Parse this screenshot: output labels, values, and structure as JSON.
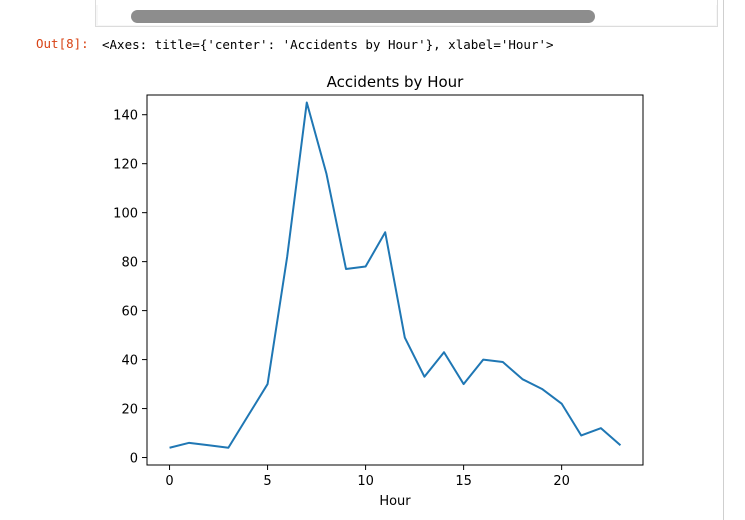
{
  "cell": {
    "prompt": "Out[8]:",
    "output_text": "<Axes: title={'center': 'Accidents by Hour'}, xlabel='Hour'>"
  },
  "colors": {
    "prompt": "#d84315",
    "line": "#1f77b4",
    "scroll_thumb": "#8d8d8d"
  },
  "chart_data": {
    "type": "line",
    "title": "Accidents by Hour",
    "xlabel": "Hour",
    "ylabel": "",
    "xlim": [
      -1.15,
      24.15
    ],
    "ylim": [
      -3.05,
      148.05
    ],
    "xticks": [
      0,
      5,
      10,
      15,
      20
    ],
    "yticks": [
      0,
      20,
      40,
      60,
      80,
      100,
      120,
      140
    ],
    "grid": false,
    "legend": "none",
    "series": [
      {
        "x": [
          0,
          1,
          2,
          3,
          4,
          5,
          6,
          7,
          8,
          9,
          10,
          11,
          12,
          13,
          14,
          15,
          16,
          17,
          18,
          19,
          20,
          21,
          22,
          23
        ],
        "values": [
          4,
          6,
          5,
          4,
          17,
          30,
          82,
          145,
          116,
          77,
          78,
          92,
          49,
          33,
          43,
          30,
          40,
          39,
          32,
          28,
          22,
          9,
          12,
          5
        ]
      }
    ]
  }
}
